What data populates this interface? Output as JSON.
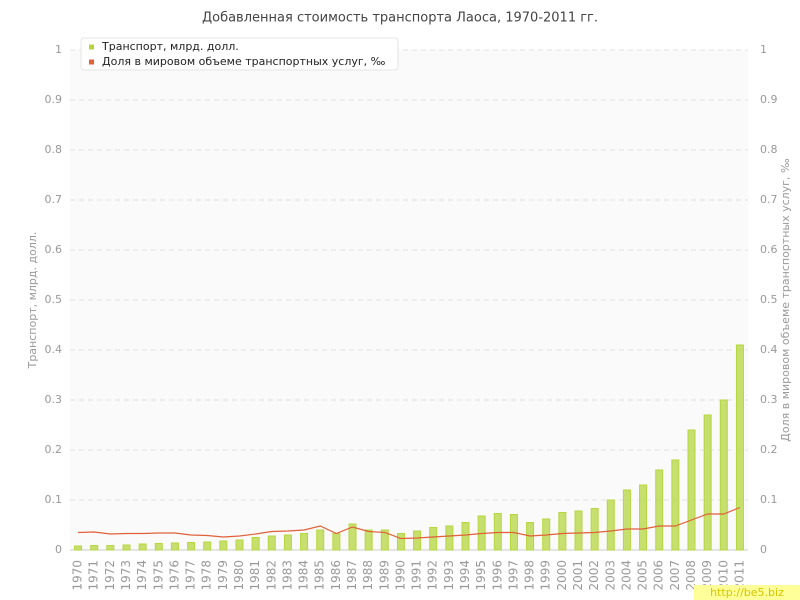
{
  "chart_data": {
    "type": "bar-line",
    "title": "Добавленная стоимость транспорта Лаоса, 1970-2011 гг.",
    "y_label": "Транспорт, млрд. долл.",
    "y2_label": "Доля в мировом объеме транспортных услуг, ‰",
    "categories": [
      "1970",
      "1971",
      "1972",
      "1973",
      "1974",
      "1975",
      "1976",
      "1977",
      "1978",
      "1979",
      "1980",
      "1981",
      "1982",
      "1983",
      "1984",
      "1985",
      "1986",
      "1987",
      "1988",
      "1989",
      "1990",
      "1991",
      "1992",
      "1993",
      "1994",
      "1995",
      "1996",
      "1997",
      "1998",
      "1999",
      "2000",
      "2001",
      "2002",
      "2003",
      "2004",
      "2005",
      "2006",
      "2007",
      "2008",
      "2009",
      "2010",
      "2011"
    ],
    "series": [
      {
        "name": "Транспорт, млрд. долл.",
        "type": "bar",
        "color": "#b5d63f",
        "values": [
          0.008,
          0.009,
          0.009,
          0.01,
          0.012,
          0.013,
          0.014,
          0.015,
          0.016,
          0.018,
          0.02,
          0.025,
          0.028,
          0.03,
          0.033,
          0.04,
          0.033,
          0.052,
          0.04,
          0.04,
          0.033,
          0.038,
          0.045,
          0.048,
          0.055,
          0.068,
          0.073,
          0.071,
          0.055,
          0.062,
          0.075,
          0.078,
          0.083,
          0.1,
          0.12,
          0.13,
          0.16,
          0.18,
          0.24,
          0.27,
          0.3,
          0.41
        ]
      },
      {
        "name": "Доля в мировом объеме транспортных услуг, ‰",
        "type": "line",
        "axis": "y2",
        "color": "#e0603a",
        "values": [
          0.035,
          0.036,
          0.032,
          0.033,
          0.033,
          0.034,
          0.034,
          0.03,
          0.029,
          0.026,
          0.028,
          0.032,
          0.037,
          0.038,
          0.04,
          0.048,
          0.033,
          0.046,
          0.037,
          0.035,
          0.023,
          0.024,
          0.026,
          0.028,
          0.03,
          0.033,
          0.035,
          0.035,
          0.028,
          0.03,
          0.033,
          0.034,
          0.035,
          0.038,
          0.042,
          0.042,
          0.048,
          0.048,
          0.06,
          0.072,
          0.072,
          0.085
        ]
      }
    ],
    "ylim": [
      0,
      1
    ],
    "yticks": [
      0,
      0.1,
      0.2,
      0.3,
      0.4,
      0.5,
      0.6,
      0.7,
      0.8,
      0.9,
      1
    ],
    "y2lim": [
      0,
      1
    ],
    "y2ticks": [
      0,
      0.1,
      0.2,
      0.3,
      0.4,
      0.5,
      0.6,
      0.7,
      0.8,
      0.9,
      1
    ],
    "grid": true,
    "legend": "top-left"
  },
  "watermark": "http://be5.biz"
}
